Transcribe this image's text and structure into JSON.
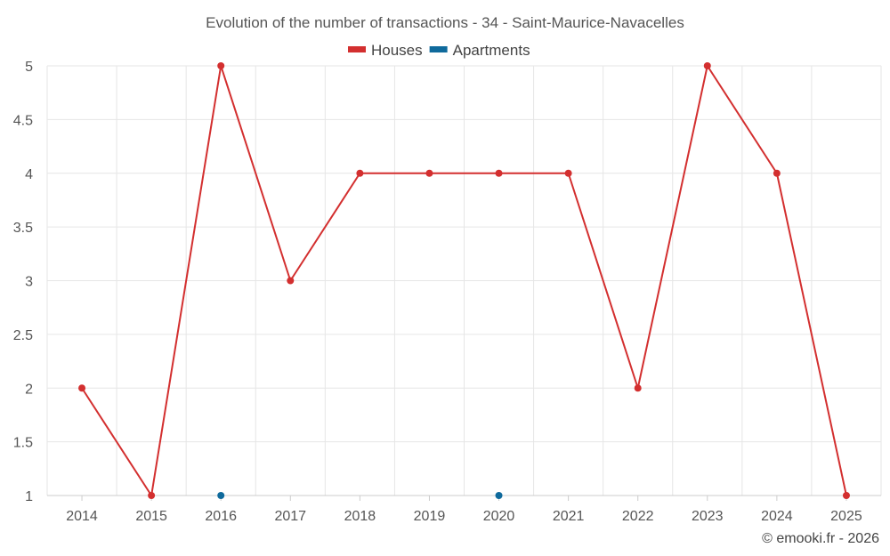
{
  "chart_data": {
    "type": "line",
    "title": "Evolution of the number of transactions - 34 - Saint-Maurice-Navacelles",
    "xlabel": "",
    "ylabel": "",
    "categories": [
      "2014",
      "2015",
      "2016",
      "2017",
      "2018",
      "2019",
      "2020",
      "2021",
      "2022",
      "2023",
      "2024",
      "2025"
    ],
    "ylim": [
      1,
      5
    ],
    "yticks": [
      "1",
      "1.5",
      "2",
      "2.5",
      "3",
      "3.5",
      "4",
      "4.5",
      "5"
    ],
    "grid": true,
    "legend_position": "top-center",
    "series": [
      {
        "name": "Houses",
        "color": "#d32f2f",
        "values": [
          2,
          1,
          5,
          3,
          4,
          4,
          4,
          4,
          2,
          5,
          4,
          1
        ]
      },
      {
        "name": "Apartments",
        "color": "#0f6a9c",
        "values": [
          null,
          null,
          1,
          null,
          null,
          null,
          1,
          null,
          null,
          null,
          null,
          null
        ]
      }
    ]
  },
  "credit": "© emooki.fr - 2026"
}
